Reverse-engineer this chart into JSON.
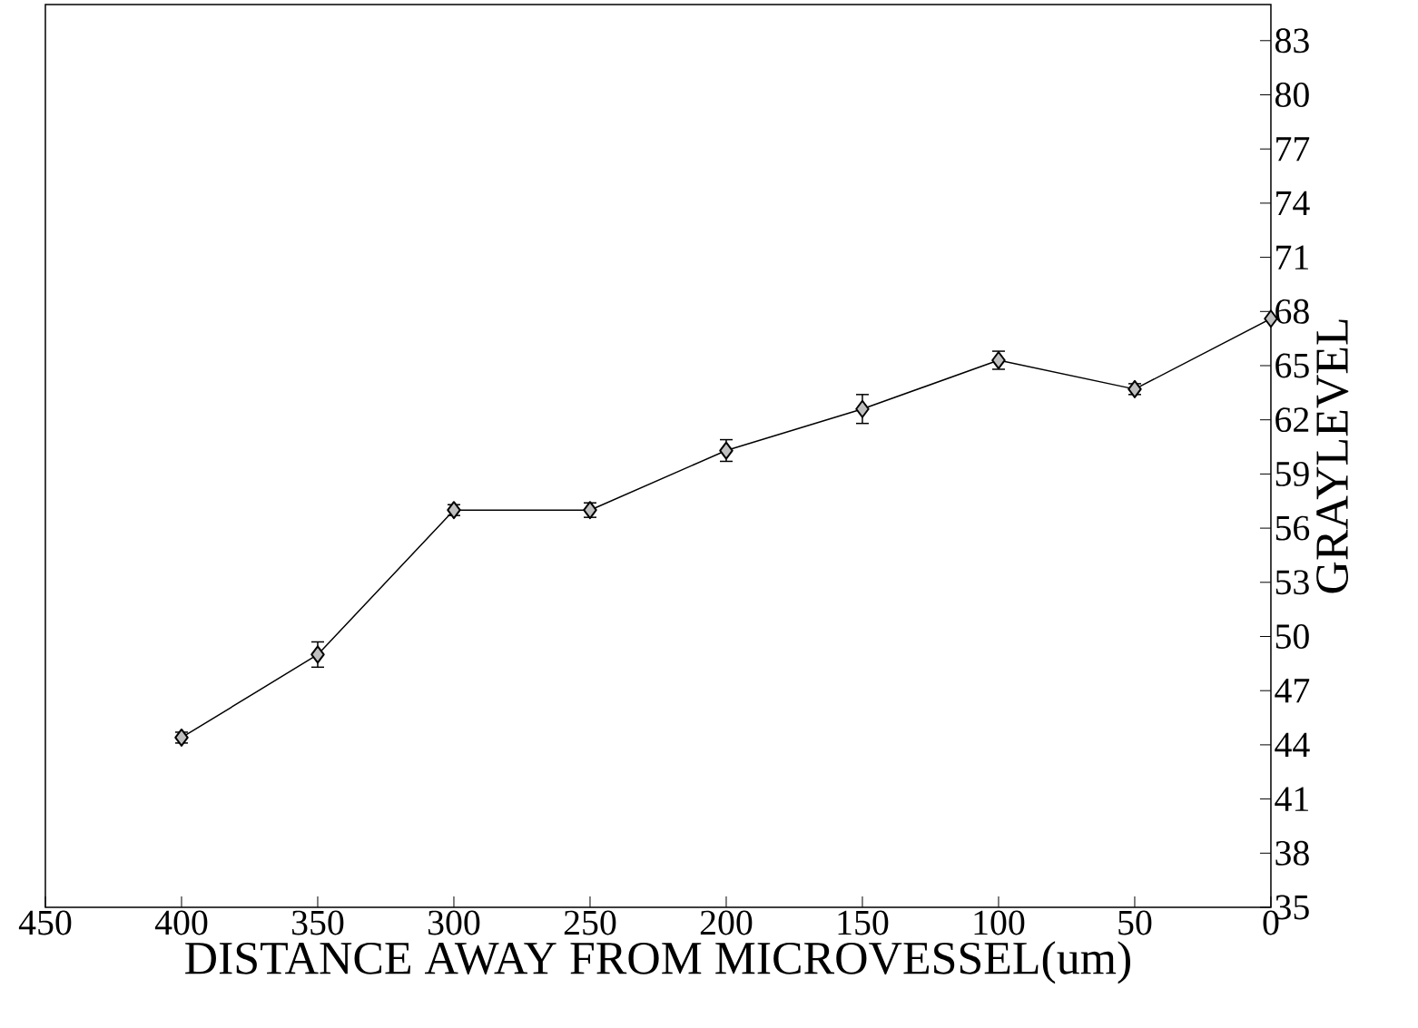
{
  "chart_data": {
    "type": "line",
    "xlabel": "DISTANCE AWAY FROM MICROVESSEL(um)",
    "ylabel": "GRAYLEVEL",
    "x": [
      400,
      350,
      300,
      250,
      200,
      150,
      100,
      50,
      0
    ],
    "values": [
      44.4,
      49.0,
      57.0,
      57.0,
      60.3,
      62.6,
      65.3,
      63.7,
      67.6
    ],
    "errors": [
      0.3,
      0.7,
      0.3,
      0.4,
      0.6,
      0.8,
      0.5,
      0.3,
      null
    ],
    "color": "#000000",
    "marker": "diamond",
    "line_style": "solid",
    "xlim": [
      450,
      0
    ],
    "ylim": [
      35,
      85
    ],
    "xticks": [
      450,
      400,
      350,
      300,
      250,
      200,
      150,
      100,
      50,
      0
    ],
    "yticks": [
      35,
      38,
      41,
      44,
      47,
      50,
      53,
      56,
      59,
      62,
      65,
      68,
      71,
      74,
      77,
      80,
      83
    ]
  }
}
